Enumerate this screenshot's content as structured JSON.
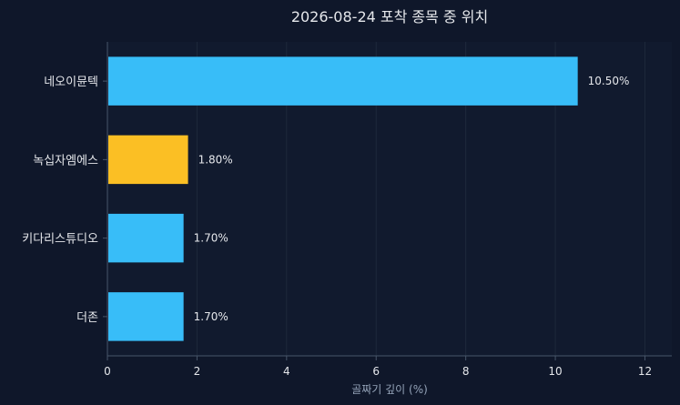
{
  "chart_data": {
    "type": "bar",
    "orientation": "horizontal",
    "title": "2026-08-24 포착 종목 중 위치",
    "xlabel": "골짜기 깊이 (%)",
    "ylabel": "",
    "xlim": [
      0,
      12.6
    ],
    "x_ticks": [
      0,
      2,
      4,
      6,
      8,
      10,
      12
    ],
    "grid": "vertical",
    "categories": [
      "네오이뮨텍",
      "녹십자엠에스",
      "키다리스튜디오",
      "더존"
    ],
    "values": [
      10.5,
      1.8,
      1.7,
      1.7
    ],
    "value_labels": [
      "10.50%",
      "1.80%",
      "1.70%",
      "1.70%"
    ],
    "highlight_index": 1,
    "colors": {
      "background": "#0f172a",
      "plot_background": "#111a2e",
      "bar": "#38bdf8",
      "highlight": "#fbbf24",
      "text": "#e5e7eb",
      "axis_label": "#94a3b8",
      "grid": "#1e293b",
      "axis": "#475569"
    }
  }
}
